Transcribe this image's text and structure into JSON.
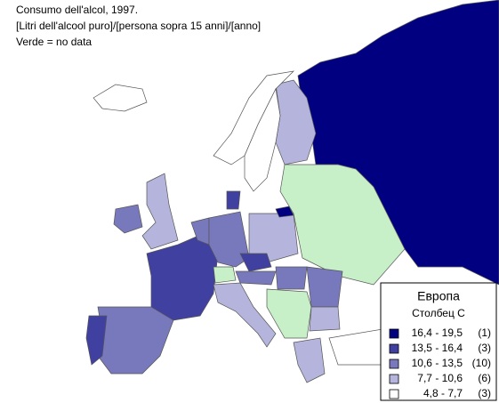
{
  "header": {
    "lines": [
      "Consumo dell'alcol, 1997.",
      "[Litri dell'alcool puro]/[persona sopra 15 anni]/[anno]",
      "Verde = no data"
    ]
  },
  "legend": {
    "title": "Европа",
    "subtitle": "Столбец C",
    "items": [
      {
        "range": "16,4 - 19,5",
        "count": "(1)",
        "color": "#000080"
      },
      {
        "range": "13,5 - 16,4",
        "count": "(3)",
        "color": "#4040a0"
      },
      {
        "range": "10,6 - 13,5",
        "count": "(10)",
        "color": "#7878bc"
      },
      {
        "range": "7,7 - 10,6",
        "count": "(6)",
        "color": "#b4b4dc"
      },
      {
        "range": "4,8 - 7,7",
        "count": "(3)",
        "color": "#ffffff"
      }
    ]
  }
}
